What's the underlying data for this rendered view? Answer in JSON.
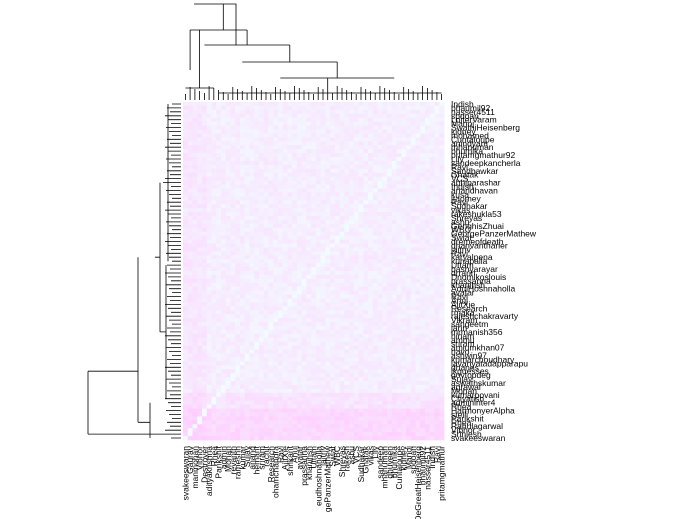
{
  "chart_data": {
    "type": "heatmap",
    "title": "",
    "xlabel": "",
    "ylabel": "",
    "row_labels": [
      "Indish",
      "bhaumil92",
      "nasser4511",
      "spdoan",
      "LoiterVaram",
      "Manoj",
      "SwathiHeisenberg",
      "kidney",
      "mohamed",
      "Cuntaloupe",
      "anindyam",
      "mhanuman",
      "bhumika",
      "pritamgmathur92",
      "Lily",
      "sandeepkancherla",
      "Ravi",
      "Sandbawkar",
      "Ghatak",
      "VCS",
      "abhiparashar",
      "Indish",
      "anandhavan",
      "kusa",
      "jtaomey",
      "Ravi",
      "Sudhakar",
      "vikas",
      "rakeshukla53",
      "Shreyas",
      "ashu",
      "GenghisZhuai",
      "WBC",
      "GeorgePanzerMathew",
      "Swiat",
      "dremeofdeath",
      "dhanvantharier",
      "jaitriv",
      "Ravi",
      "karyalpena",
      "kuhapalla",
      "Uttam",
      "bashyarayar",
      "drrarin",
      "Dnomikoslouis",
      "prassanna",
      "khanihsh",
      "AdulHoshnaholla",
      "avatar",
      "Ravi",
      "Anuj",
      "AjitXie",
      "Research",
      "rmaka",
      "rajeshchakravarty",
      "Vikram",
      "sangeetm",
      "jarin",
      "mrmanish356",
      "hinam",
      "ammu",
      "sriram",
      "amiumkhan07",
      "navo",
      "ashwin97",
      "kumarchoudhary",
      "lavanyatadapparapu",
      "dhanes",
      "jkguesses",
      "govtopdeg",
      "Sujay",
      "aswathskumar",
      "agrawal",
      "Mohan",
      "kumarpovani",
      "Chyatish",
      "admininter4",
      "Rhea",
      "HarmonyerAlpha",
      "stelli",
      "Parikshit",
      "Rhea",
      "Rahulagarwal",
      "Vibhor",
      "Sriniesh",
      "svakeeswaran"
    ],
    "col_labels": [
      "svakeeswaran",
      "Gaurav",
      "manmohan",
      "Vibhor",
      "Destroyer",
      "adityakrishna",
      "Rhea",
      "Parikshit",
      "admin",
      "Mohan",
      "revanth",
      "rameshh",
      "kumar",
      "Sujay",
      "anand",
      "hemant",
      "sriram",
      "rachit",
      "Research",
      "ohamchandra",
      "Ravi",
      "AjitXie",
      "shrikant",
      "Anuj",
      "avatar",
      "prassanna",
      "khanihsh",
      "Uttam",
      "eudhoshnaholla",
      "jaitriv",
      "gePanzerMathew",
      "Swiat",
      "WBC",
      "Shreyas",
      "rakesh",
      "ashu",
      "VCS",
      "Sudhakar",
      "Ghatak",
      "vikas",
      "Lily",
      "sandeep",
      "mhanuman",
      "ghuveen",
      "bhumika",
      "Cuntaloupe",
      "kidney",
      "Manoj",
      "spdoan",
      "DeGreatHeisenberg",
      "bhaumil92",
      "nasser4511",
      "Indish",
      "Ravi",
      "pritamgmathur"
    ],
    "colormap": [
      "#f2fbff",
      "#ffccff"
    ],
    "dendrogram_rows": true,
    "dendrogram_cols": true,
    "grid": false,
    "legend": "none"
  }
}
